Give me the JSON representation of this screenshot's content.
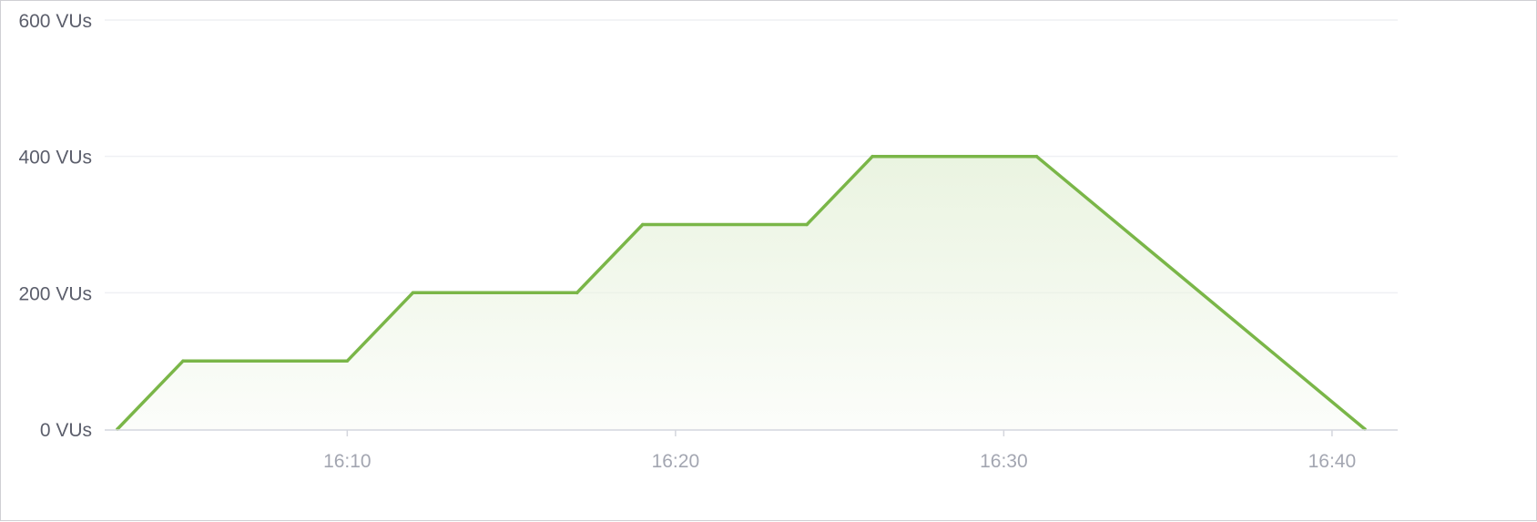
{
  "chart_data": {
    "type": "area",
    "title": "",
    "xlabel": "",
    "ylabel": "",
    "x_unit": "time (HH:MM)",
    "y_unit": "VUs",
    "xlim": [
      "16:03",
      "16:42"
    ],
    "ylim": [
      0,
      600
    ],
    "grid": true,
    "legend": "none",
    "y_ticks": [
      {
        "value": 0,
        "label": "0 VUs"
      },
      {
        "value": 200,
        "label": "200 VUs"
      },
      {
        "value": 400,
        "label": "400 VUs"
      },
      {
        "value": 600,
        "label": "600 VUs"
      }
    ],
    "x_ticks": [
      {
        "value": "16:10",
        "label": "16:10"
      },
      {
        "value": "16:20",
        "label": "16:20"
      },
      {
        "value": "16:30",
        "label": "16:30"
      },
      {
        "value": "16:40",
        "label": "16:40"
      }
    ],
    "series": [
      {
        "points": [
          {
            "x": "16:03",
            "y": 0
          },
          {
            "x": "16:05",
            "y": 100
          },
          {
            "x": "16:10",
            "y": 100
          },
          {
            "x": "16:12",
            "y": 200
          },
          {
            "x": "16:17",
            "y": 200
          },
          {
            "x": "16:19",
            "y": 300
          },
          {
            "x": "16:24",
            "y": 300
          },
          {
            "x": "16:26",
            "y": 400
          },
          {
            "x": "16:31",
            "y": 400
          },
          {
            "x": "16:41",
            "y": 0
          }
        ],
        "color": "#7ab648",
        "fill": "#e9f3df"
      }
    ],
    "colors": {
      "line": "#7ab648",
      "grid": "#eff0f4",
      "axis": "#d4d6dd",
      "y_tick_text": "#5b5e6b",
      "x_tick_text": "#a3a6b1"
    }
  }
}
